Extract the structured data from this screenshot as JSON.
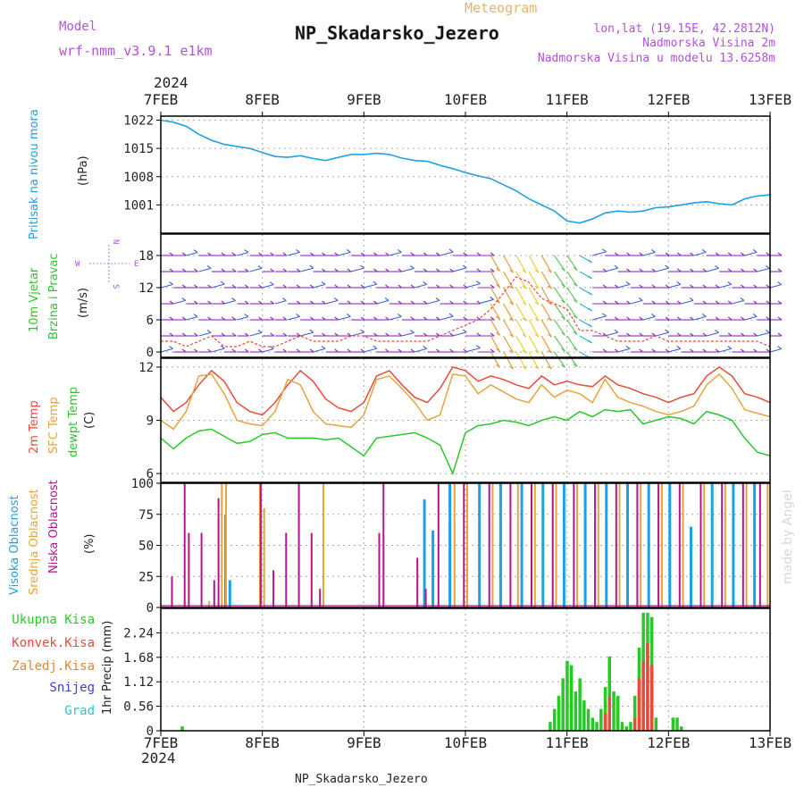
{
  "header": {
    "model_label": "Model",
    "model_name": "wrf-nmm_v3.9.1 e1km",
    "product": "Meteogram",
    "station": "NP_Skadarsko_Jezero",
    "lonlat": "lon,lat (19.15E, 42.2812N)",
    "elev": "Nadmorska Visina 2m",
    "model_elev": "Nadmorska Visina u modelu 13.6258m",
    "credit": "made by Angel",
    "footer_station": "NP_Skadarsko_Jezero"
  },
  "colors": {
    "pressure": "#1ea0e6",
    "temp": "#e84a3c",
    "sfc": "#e6a53c",
    "dew": "#28c828",
    "high_cloud": "#1ea0e6",
    "mid_cloud": "#e6a53c",
    "low_cloud": "#b4148c",
    "total_precip": "#28c828",
    "conv_precip": "#e84a3c",
    "frozen": "#f08228",
    "snow": "#3c3cdc",
    "hail": "#28c8c8",
    "wind_label": "#28c828",
    "wind_arrow_label": "#b450dc"
  },
  "chart_data": [
    {
      "type": "line",
      "panel": "pressure",
      "ylabel_main": "Pritisak na nivou mora",
      "unit": "(hPa)",
      "ylim": [
        994,
        1023
      ],
      "yticks": [
        1001,
        1008,
        1015,
        1022
      ],
      "x_axis": {
        "top_year": "2024",
        "bottom_year": "2024",
        "ticks": [
          "7FEB",
          "8FEB",
          "9FEB",
          "10FEB",
          "11FEB",
          "12FEB",
          "13FEB"
        ],
        "xlim": [
          0,
          144
        ]
      },
      "series": [
        {
          "key": "pressure",
          "x": [
            0,
            3,
            6,
            9,
            12,
            15,
            18,
            21,
            24,
            27,
            30,
            33,
            36,
            39,
            42,
            45,
            48,
            51,
            54,
            57,
            60,
            63,
            66,
            69,
            72,
            75,
            78,
            81,
            84,
            87,
            90,
            93,
            96,
            99,
            102,
            105,
            108,
            111,
            114,
            117,
            120,
            123,
            126,
            129,
            132,
            135,
            138,
            141,
            144
          ],
          "y": [
            1022.0,
            1021.5,
            1020.5,
            1018.5,
            1017.0,
            1016.0,
            1015.5,
            1015.0,
            1014.0,
            1013.0,
            1012.8,
            1013.2,
            1012.5,
            1012.0,
            1012.8,
            1013.5,
            1013.5,
            1013.8,
            1013.5,
            1012.6,
            1012.0,
            1011.8,
            1010.8,
            1010.0,
            1009.0,
            1008.2,
            1007.5,
            1006.0,
            1004.5,
            1002.5,
            1001.0,
            999.5,
            997.0,
            996.5,
            997.5,
            999.0,
            999.5,
            999.2,
            999.5,
            1000.3,
            1000.5,
            1001.0,
            1001.5,
            1001.8,
            1001.3,
            1001.0,
            1002.5,
            1003.2,
            1003.5
          ]
        }
      ]
    },
    {
      "type": "scatter",
      "panel": "wind",
      "ylabel_main": "10m Vjetar",
      "ylabel_sub": "Brzina i Pravac",
      "unit": "(m/s)",
      "legend_letters": [
        "N",
        "W",
        "E",
        "S"
      ],
      "ylim": [
        -1,
        22
      ],
      "yticks": [
        0,
        6,
        12,
        18
      ],
      "series": [
        {
          "name": "speed",
          "x": [
            0,
            3,
            6,
            9,
            12,
            15,
            18,
            21,
            24,
            27,
            30,
            33,
            36,
            39,
            42,
            45,
            48,
            51,
            54,
            57,
            60,
            63,
            66,
            69,
            72,
            75,
            78,
            81,
            84,
            87,
            90,
            93,
            96,
            99,
            102,
            105,
            108,
            111,
            114,
            117,
            120,
            123,
            126,
            129,
            132,
            135,
            138,
            141,
            144
          ],
          "y": [
            2,
            2,
            1,
            2,
            3,
            1,
            1,
            2,
            1,
            1,
            2,
            3,
            2,
            2,
            2,
            3,
            3,
            2,
            2,
            2,
            2,
            2,
            3,
            4,
            5,
            6,
            8,
            11,
            14,
            13,
            10,
            9,
            8,
            4,
            4,
            3,
            2,
            2,
            2,
            3,
            2,
            2,
            2,
            2,
            2,
            2,
            2,
            2,
            1
          ]
        }
      ]
    },
    {
      "type": "line",
      "panel": "temperature",
      "labels": [
        "2m Temp",
        "SFC Temp",
        "dewpt Temp"
      ],
      "unit": "(C)",
      "ylim": [
        5.5,
        12.5
      ],
      "yticks": [
        6,
        9,
        12
      ],
      "series": [
        {
          "key": "temp",
          "x": [
            0,
            3,
            6,
            9,
            12,
            15,
            18,
            21,
            24,
            27,
            30,
            33,
            36,
            39,
            42,
            45,
            48,
            51,
            54,
            57,
            60,
            63,
            66,
            69,
            72,
            75,
            78,
            81,
            84,
            87,
            90,
            93,
            96,
            99,
            102,
            105,
            108,
            111,
            114,
            117,
            120,
            123,
            126,
            129,
            132,
            135,
            138,
            141,
            144
          ],
          "y": [
            10.3,
            9.5,
            10.0,
            11.0,
            11.8,
            11.2,
            10.0,
            9.5,
            9.3,
            10.0,
            11.0,
            11.8,
            11.2,
            10.2,
            9.7,
            9.5,
            10.0,
            11.5,
            11.8,
            11.0,
            10.3,
            10.0,
            10.8,
            12.0,
            11.8,
            11.2,
            11.5,
            11.3,
            11.0,
            10.8,
            11.5,
            11.0,
            11.2,
            11.0,
            10.9,
            11.5,
            11.0,
            10.8,
            10.5,
            10.3,
            10.0,
            10.3,
            10.5,
            11.5,
            12.0,
            11.5,
            10.5,
            10.3,
            10.0
          ]
        },
        {
          "key": "sfc",
          "x": [
            0,
            3,
            6,
            9,
            12,
            15,
            18,
            21,
            24,
            27,
            30,
            33,
            36,
            39,
            42,
            45,
            48,
            51,
            54,
            57,
            60,
            63,
            66,
            69,
            72,
            75,
            78,
            81,
            84,
            87,
            90,
            93,
            96,
            99,
            102,
            105,
            108,
            111,
            114,
            117,
            120,
            123,
            126,
            129,
            132,
            135,
            138,
            141,
            144
          ],
          "y": [
            9.0,
            8.5,
            9.5,
            11.5,
            11.6,
            10.5,
            9.0,
            8.8,
            8.7,
            9.5,
            11.3,
            11.0,
            9.5,
            8.8,
            8.7,
            8.6,
            9.3,
            11.3,
            11.5,
            10.8,
            10.0,
            9.0,
            9.3,
            11.6,
            11.5,
            10.5,
            11.0,
            10.6,
            10.2,
            10.0,
            11.0,
            10.3,
            10.7,
            10.5,
            10.0,
            11.3,
            10.3,
            10.0,
            9.8,
            9.5,
            9.3,
            9.5,
            9.8,
            11.0,
            11.6,
            10.8,
            9.6,
            9.4,
            9.2
          ]
        },
        {
          "key": "dew",
          "x": [
            0,
            3,
            6,
            9,
            12,
            15,
            18,
            21,
            24,
            27,
            30,
            33,
            36,
            39,
            42,
            45,
            48,
            51,
            54,
            57,
            60,
            63,
            66,
            69,
            72,
            75,
            78,
            81,
            84,
            87,
            90,
            93,
            96,
            99,
            102,
            105,
            108,
            111,
            114,
            117,
            120,
            123,
            126,
            129,
            132,
            135,
            138,
            141,
            144
          ],
          "y": [
            8.0,
            7.4,
            8.0,
            8.4,
            8.5,
            8.1,
            7.7,
            7.8,
            8.2,
            8.3,
            8.0,
            8.0,
            8.0,
            7.9,
            8.0,
            7.5,
            7.0,
            8.0,
            8.1,
            8.2,
            8.3,
            8.0,
            7.6,
            6.0,
            8.3,
            8.7,
            8.8,
            9.0,
            8.9,
            8.7,
            9.0,
            9.2,
            9.0,
            9.5,
            9.2,
            9.6,
            9.5,
            9.6,
            8.8,
            9.0,
            9.2,
            9.1,
            8.8,
            9.5,
            9.3,
            9.0,
            8.0,
            7.2,
            7.0
          ]
        }
      ]
    },
    {
      "type": "bar",
      "panel": "clouds",
      "labels": [
        "Visoka Oblacnost",
        "Srednja Oblacnost",
        "Niska Oblacnost"
      ],
      "unit": "(%)",
      "ylim": [
        0,
        100
      ],
      "yticks": [
        0,
        25,
        50,
        75,
        100
      ],
      "series": [
        {
          "key": "high_cloud",
          "x": [
            15,
            16,
            62,
            64,
            68,
            75,
            80,
            85,
            90,
            95,
            100,
            105,
            110,
            115,
            120,
            125,
            130,
            135,
            140
          ],
          "y": [
            75,
            22,
            87,
            62,
            100,
            100,
            100,
            100,
            100,
            100,
            100,
            100,
            100,
            100,
            100,
            65,
            100,
            100,
            100
          ]
        },
        {
          "key": "mid_cloud",
          "x": [
            11,
            14,
            15,
            23,
            24,
            38,
            53,
            69,
            72,
            78,
            84,
            88,
            93,
            98,
            103,
            108,
            113,
            118,
            123,
            128,
            133,
            138,
            143
          ],
          "y": [
            5,
            100,
            100,
            100,
            80,
            100,
            0,
            100,
            100,
            100,
            100,
            100,
            100,
            100,
            100,
            100,
            100,
            100,
            100,
            100,
            100,
            100,
            100
          ]
        },
        {
          "key": "low_cloud",
          "x": [
            2,
            5,
            6,
            9,
            12,
            13,
            17,
            23,
            26,
            29,
            32,
            35,
            37,
            51,
            52,
            60,
            62,
            65,
            71,
            77,
            82,
            87,
            92,
            97,
            102,
            107,
            112,
            117,
            122,
            127,
            132,
            137,
            141
          ],
          "y": [
            25,
            100,
            60,
            60,
            22,
            88,
            0,
            100,
            30,
            60,
            100,
            60,
            15,
            60,
            100,
            40,
            15,
            100,
            100,
            100,
            100,
            100,
            100,
            100,
            100,
            100,
            100,
            100,
            100,
            100,
            100,
            100,
            100
          ]
        }
      ]
    },
    {
      "type": "bar",
      "panel": "precipitation",
      "labels": [
        "Ukupna Kisa",
        "Konvek.Kisa",
        "Zaledj.Kisa",
        "Snijeg",
        "Grad"
      ],
      "ylabel_main": "1hr Precip (mm)",
      "ylim": [
        0,
        2.8
      ],
      "yticks": [
        0,
        0.56,
        1.12,
        1.68,
        2.24
      ],
      "series": [
        {
          "key": "total_precip",
          "x": [
            5,
            92,
            93,
            94,
            95,
            96,
            97,
            98,
            99,
            100,
            101,
            102,
            103,
            104,
            105,
            106,
            107,
            108,
            109,
            110,
            111,
            112,
            113,
            114,
            115,
            116,
            117,
            118,
            119,
            120,
            121,
            122,
            123,
            124
          ],
          "y": [
            0.1,
            0.2,
            0.5,
            0.8,
            1.2,
            1.6,
            1.5,
            0.9,
            1.2,
            0.7,
            0.5,
            0.3,
            0.2,
            0.5,
            1.0,
            1.7,
            0.9,
            0.8,
            0.2,
            0.1,
            0.2,
            0.8,
            1.9,
            2.7,
            2.7,
            2.6,
            0.3,
            0,
            0,
            0,
            0.3,
            0.3,
            0.1,
            0
          ]
        },
        {
          "key": "conv_precip",
          "x": [
            105,
            106,
            112,
            113,
            114,
            115,
            116
          ],
          "y": [
            0.4,
            0.8,
            0.3,
            1.2,
            1.6,
            2.0,
            1.5
          ]
        }
      ]
    }
  ]
}
